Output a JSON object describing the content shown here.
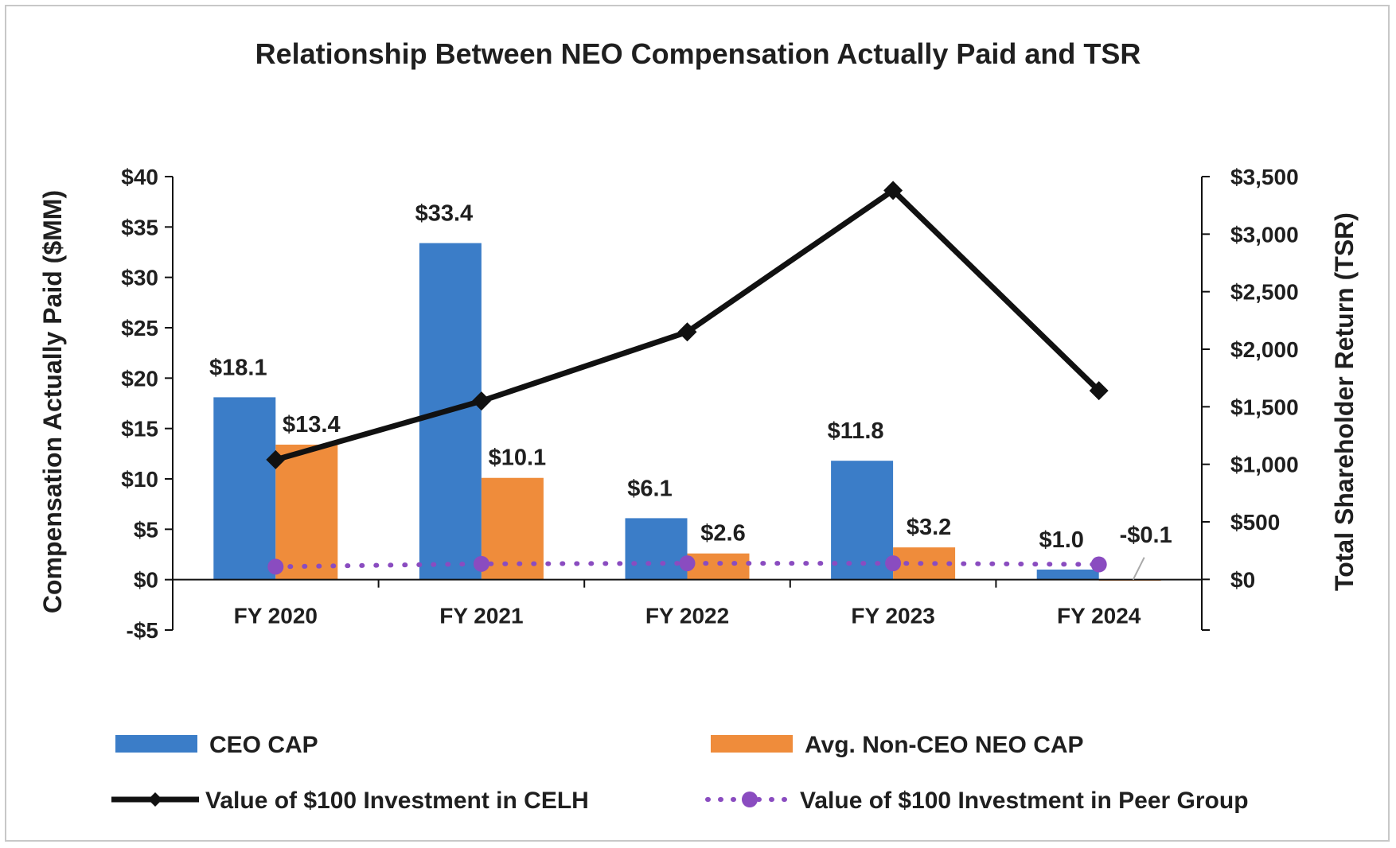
{
  "chart_data": {
    "type": "bar",
    "title": "Relationship Between NEO Compensation Actually Paid and TSR",
    "categories": [
      "FY 2020",
      "FY 2021",
      "FY 2022",
      "FY 2023",
      "FY 2024"
    ],
    "y_left": {
      "label": "Compensation Actually Paid ($MM)",
      "range": [
        -5,
        40
      ],
      "ticks": [
        40,
        35,
        30,
        25,
        20,
        15,
        10,
        5,
        0,
        -5
      ],
      "tick_labels": [
        "$40",
        "$35",
        "$30",
        "$25",
        "$20",
        "$15",
        "$10",
        "$5",
        "$0",
        "-$5"
      ]
    },
    "y_right": {
      "label": "Total Shareholder Return (TSR)",
      "range": [
        -440,
        3500
      ],
      "ticks": [
        3500,
        3000,
        2500,
        2000,
        1500,
        1000,
        500,
        0
      ],
      "tick_labels": [
        "$3,500",
        "$3,000",
        "$2,500",
        "$2,000",
        "$1,500",
        "$1,000",
        "$500",
        "$0"
      ]
    },
    "series": [
      {
        "name": "CEO CAP",
        "kind": "bar",
        "axis": "left",
        "color": "#3b7dc8",
        "values": [
          18.1,
          33.4,
          6.1,
          11.8,
          1.0
        ],
        "labels": [
          "$18.1",
          "$33.4",
          "$6.1",
          "$11.8",
          "$1.0"
        ]
      },
      {
        "name": "Avg. Non-CEO NEO CAP",
        "kind": "bar",
        "axis": "left",
        "color": "#ef8c3b",
        "values": [
          13.4,
          10.1,
          2.6,
          3.2,
          -0.1
        ],
        "labels": [
          "$13.4",
          "$10.1",
          "$2.6",
          "$3.2",
          "-$0.1"
        ]
      },
      {
        "name": "Value of $100 Investment in CELH",
        "kind": "line",
        "axis": "right",
        "color": "#111111",
        "values": [
          1040,
          1550,
          2150,
          3380,
          1640
        ]
      },
      {
        "name": "Value of $100 Investment in Peer Group",
        "kind": "dotted-line",
        "axis": "right",
        "color": "#8a4cc0",
        "values": [
          110,
          135,
          140,
          140,
          130
        ]
      }
    ],
    "legend_position": "bottom",
    "grid": false
  }
}
